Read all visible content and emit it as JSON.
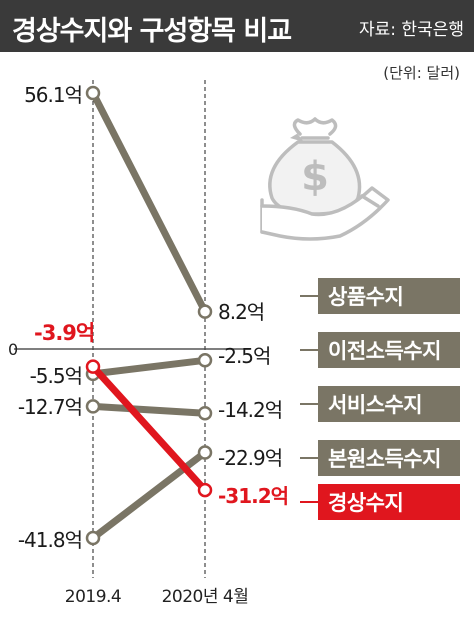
{
  "title": "경상수지와 구성항목 비교",
  "source": "자료: 한국은행",
  "unit": "(단위: 달러)",
  "colors": {
    "header_bg": "#3a3a3a",
    "series_gray": "#7a7565",
    "highlight_red": "#e0161e",
    "label_box_gray": "#7a7565",
    "zero_line": "#555555"
  },
  "icon": "money-bag-hand-icon",
  "chart_data": {
    "type": "line",
    "x": [
      "2019.4",
      "2020년 4월"
    ],
    "zero_label": "0",
    "series": [
      {
        "name": "상품수지",
        "values": [
          56.1,
          8.2
        ],
        "labels": [
          "56.1억",
          "8.2억"
        ],
        "highlight": false
      },
      {
        "name": "이전소득수지",
        "values": [
          -5.5,
          -2.5
        ],
        "labels": [
          "-5.5억",
          "-2.5억"
        ],
        "highlight": false
      },
      {
        "name": "서비스수지",
        "values": [
          -12.7,
          -14.2
        ],
        "labels": [
          "-12.7억",
          "-14.2억"
        ],
        "highlight": false
      },
      {
        "name": "본원소득수지",
        "values": [
          -41.8,
          -22.9
        ],
        "labels": [
          "-41.8억",
          "-22.9억"
        ],
        "highlight": false
      },
      {
        "name": "경상수지",
        "values": [
          -3.9,
          -31.2
        ],
        "labels": [
          "-3.9억",
          "-31.2억"
        ],
        "highlight": true
      }
    ]
  }
}
